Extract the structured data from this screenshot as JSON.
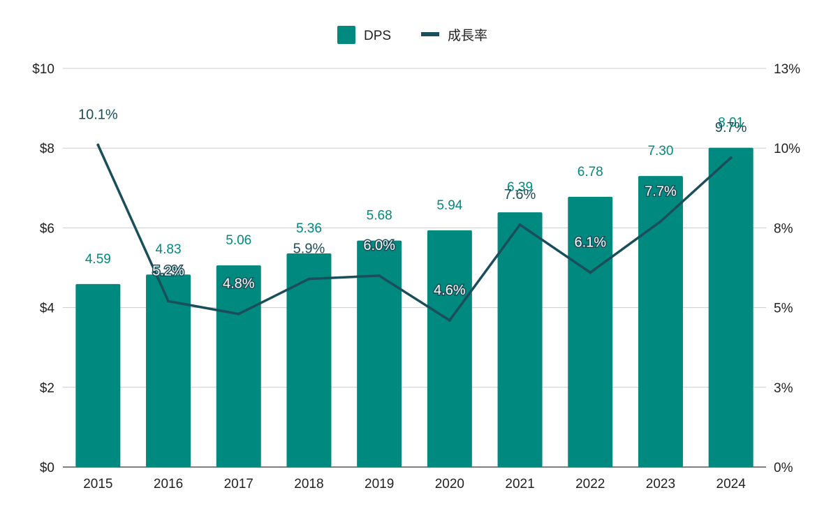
{
  "chart_data": {
    "type": "bar",
    "categories": [
      "2015",
      "2016",
      "2017",
      "2018",
      "2019",
      "2020",
      "2021",
      "2022",
      "2023",
      "2024"
    ],
    "series": [
      {
        "name": "DPS",
        "kind": "bar",
        "axis": "left",
        "values": [
          4.59,
          4.83,
          5.06,
          5.36,
          5.68,
          5.94,
          6.39,
          6.78,
          7.3,
          8.01
        ],
        "labels": [
          "4.59",
          "4.83",
          "5.06",
          "5.36",
          "5.68",
          "5.94",
          "6.39",
          "6.78",
          "7.30",
          "8.01"
        ],
        "color": "#00897f"
      },
      {
        "name": "成長率",
        "kind": "line",
        "axis": "right",
        "values": [
          10.1,
          5.2,
          4.8,
          5.9,
          6.0,
          4.6,
          7.6,
          6.1,
          7.7,
          9.7
        ],
        "labels": [
          "10.1%",
          "5.2%",
          "4.8%",
          "5.9%",
          "6.0%",
          "4.6%",
          "7.6%",
          "6.1%",
          "7.7%",
          "9.7%"
        ],
        "color": "#1a4e5a"
      }
    ],
    "y_left": {
      "range": [
        0,
        10
      ],
      "ticks": [
        0,
        2,
        4,
        6,
        8,
        10
      ],
      "tick_labels": [
        "$0",
        "$2",
        "$4",
        "$6",
        "$8",
        "$10"
      ]
    },
    "y_right": {
      "range": [
        0,
        12.5
      ],
      "ticks": [
        0,
        2.5,
        5,
        7.5,
        10,
        12.5
      ],
      "tick_labels": [
        "0%",
        "3%",
        "5%",
        "8%",
        "10%",
        "13%"
      ]
    },
    "grid": true,
    "legend": "top-center",
    "title": "",
    "xlabel": "",
    "ylabel": ""
  }
}
